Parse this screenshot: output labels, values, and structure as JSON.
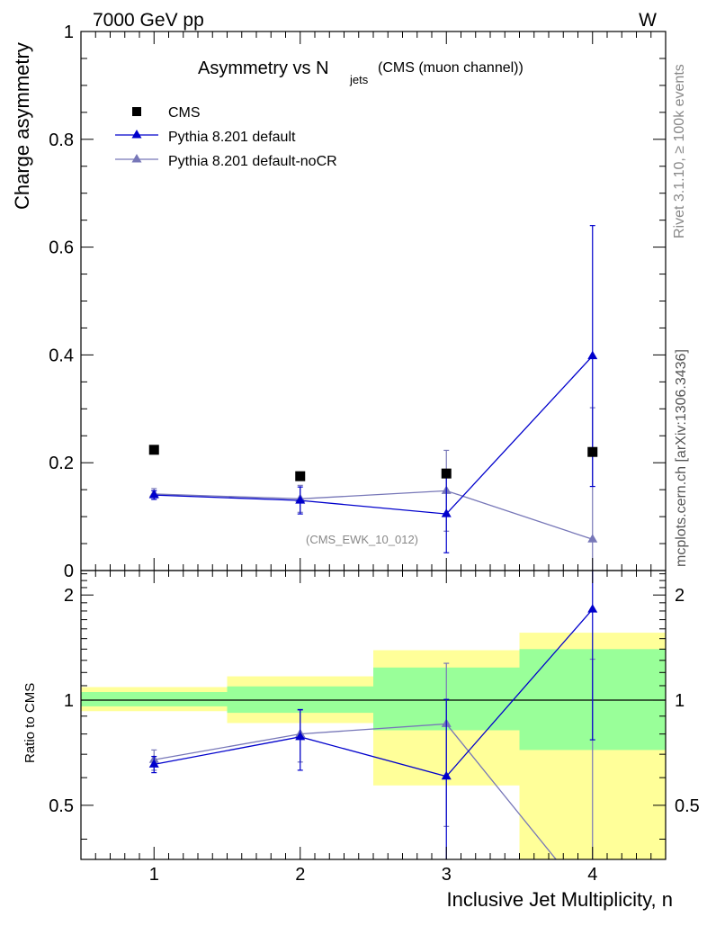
{
  "header": {
    "left": "7000 GeV pp",
    "right": "W"
  },
  "side_labels": {
    "rivet": "Rivet 3.1.10, ≥ 100k events",
    "source": "mcplots.cern.ch [arXiv:1306.3436]"
  },
  "chart_data": [
    {
      "type": "scatter",
      "panel": "main",
      "title_main": "Asymmetry vs N",
      "title_sub": "jets",
      "title_suffix": "(CMS (muon channel))",
      "ylabel": "Charge asymmetry",
      "ylim": [
        0,
        1
      ],
      "yticks": [
        0,
        0.2,
        0.4,
        0.6,
        0.8,
        1
      ],
      "ytick_labels": [
        "0",
        "0.2",
        "0.4",
        "0.6",
        "0.8",
        "1"
      ],
      "xlim": [
        0.5,
        4.5
      ],
      "annotation": "(CMS_EWK_10_012)",
      "legend_position": "top-left",
      "series": [
        {
          "name": "CMS",
          "style": "square",
          "color": "#000000",
          "x": [
            1,
            2,
            3,
            4
          ],
          "y": [
            0.224,
            0.175,
            0.18,
            0.22
          ],
          "err": [
            0,
            0,
            0,
            0
          ]
        },
        {
          "name": "Pythia 8.201 default",
          "style": "triangle-line",
          "color": "#0000cc",
          "x": [
            1,
            2,
            3,
            4
          ],
          "y": [
            0.14,
            0.13,
            0.105,
            0.398
          ],
          "err": [
            0.008,
            0.025,
            0.072,
            0.242
          ]
        },
        {
          "name": "Pythia 8.201 default-noCR",
          "style": "triangle-line",
          "color": "#7777b8",
          "x": [
            1,
            2,
            3,
            4
          ],
          "y": [
            0.142,
            0.133,
            0.148,
            0.058
          ],
          "err": [
            0.01,
            0.025,
            0.075,
            0.244
          ]
        }
      ]
    },
    {
      "type": "scatter",
      "panel": "ratio",
      "ylabel": "Ratio to CMS",
      "xlabel": "Inclusive Jet Multiplicity, n",
      "ylim": [
        0.35,
        2.35
      ],
      "yticks": [
        0.5,
        1,
        2
      ],
      "ytick_labels": [
        "0.5",
        "1",
        "2"
      ],
      "xlim": [
        0.5,
        4.5
      ],
      "xticks": [
        1,
        2,
        3,
        4
      ],
      "xtick_labels": [
        "1",
        "2",
        "3",
        "4"
      ],
      "bands": [
        {
          "x0": 0.5,
          "x1": 1.5,
          "yellow": [
            0.93,
            1.09
          ],
          "green": [
            0.96,
            1.055
          ]
        },
        {
          "x0": 1.5,
          "x1": 2.5,
          "yellow": [
            0.86,
            1.17
          ],
          "green": [
            0.92,
            1.095
          ]
        },
        {
          "x0": 2.5,
          "x1": 3.5,
          "yellow": [
            0.57,
            1.39
          ],
          "green": [
            0.82,
            1.24
          ]
        },
        {
          "x0": 3.5,
          "x1": 4.5,
          "yellow": [
            0.35,
            1.56
          ],
          "green": [
            0.72,
            1.4
          ]
        }
      ],
      "band_colors": {
        "yellow": "#ffff99",
        "green": "#99ff99"
      },
      "series": [
        {
          "name": "Pythia 8.201 default",
          "color": "#0000cc",
          "x": [
            1,
            2,
            3,
            4
          ],
          "y": [
            0.655,
            0.785,
            0.605,
            1.82
          ],
          "err": [
            0.035,
            0.155,
            0.4,
            1.05
          ]
        },
        {
          "name": "Pythia 8.201 default-noCR",
          "color": "#7777b8",
          "x": [
            1,
            2,
            3,
            4
          ],
          "y": [
            0.675,
            0.8,
            0.855,
            0.26
          ],
          "err": [
            0.045,
            0.135,
            0.42,
            1.05
          ]
        }
      ]
    }
  ]
}
